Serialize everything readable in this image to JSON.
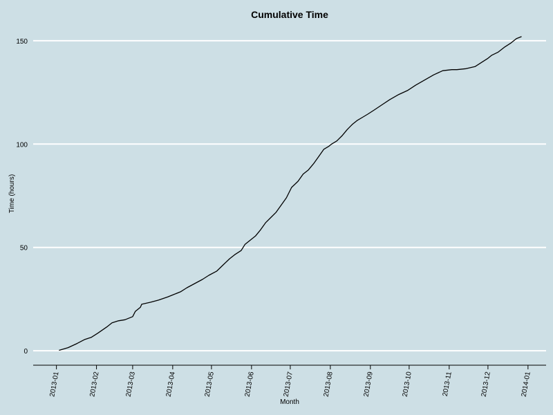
{
  "chart_data": {
    "type": "line",
    "title": "Cumulative Time",
    "xlabel": "Month",
    "ylabel": "Time (hours)",
    "x_axis_type": "date",
    "xlim": [
      "2012-12-14",
      "2014-01-15"
    ],
    "ylim": [
      -7,
      157
    ],
    "grid": "horizontal",
    "colors": {
      "background": "#cddfe5",
      "grid": "#ffffff",
      "line": "#000000"
    },
    "y_ticks": [
      0,
      50,
      100,
      150
    ],
    "x_ticks": [
      "2013-01",
      "2013-02",
      "2013-03",
      "2013-04",
      "2013-05",
      "2013-06",
      "2013-07",
      "2013-08",
      "2013-09",
      "2013-10",
      "2013-11",
      "2013-12",
      "2014-01"
    ],
    "series": [
      {
        "x": [
          "2013-01-03",
          "2013-01-10",
          "2013-01-17",
          "2013-01-23",
          "2013-01-28",
          "2013-02-02",
          "2013-02-09",
          "2013-02-13",
          "2013-02-18",
          "2013-02-23",
          "2013-03-01",
          "2013-03-03",
          "2013-03-07",
          "2013-03-08",
          "2013-03-15",
          "2013-03-21",
          "2013-03-28",
          "2013-04-01",
          "2013-04-07",
          "2013-04-12",
          "2013-04-18",
          "2013-04-24",
          "2013-04-29",
          "2013-05-05",
          "2013-05-10",
          "2013-05-15",
          "2013-05-19",
          "2013-05-24",
          "2013-05-27",
          "2013-05-31",
          "2013-06-04",
          "2013-06-08",
          "2013-06-12",
          "2013-06-16",
          "2013-06-20",
          "2013-06-24",
          "2013-06-28",
          "2013-07-02",
          "2013-07-07",
          "2013-07-11",
          "2013-07-15",
          "2013-07-19",
          "2013-07-23",
          "2013-07-27",
          "2013-07-31",
          "2013-08-02",
          "2013-08-06",
          "2013-08-10",
          "2013-08-14",
          "2013-08-18",
          "2013-08-22",
          "2013-08-26",
          "2013-08-30",
          "2013-09-04",
          "2013-09-10",
          "2013-09-16",
          "2013-09-23",
          "2013-09-30",
          "2013-10-06",
          "2013-10-13",
          "2013-10-20",
          "2013-10-27",
          "2013-11-03",
          "2013-11-07",
          "2013-11-14",
          "2013-11-21",
          "2013-11-26",
          "2013-12-01",
          "2013-12-04",
          "2013-12-09",
          "2013-12-14",
          "2013-12-19",
          "2013-12-23",
          "2013-12-27"
        ],
        "y": [
          0.2,
          1.5,
          3.5,
          5.5,
          6.5,
          8.5,
          11.5,
          13.5,
          14.5,
          15,
          16.5,
          19,
          21,
          22.5,
          23.5,
          24.5,
          26,
          27,
          28.5,
          30.5,
          32.5,
          34.5,
          36.5,
          38.5,
          41.5,
          44.5,
          46.5,
          48.5,
          51.5,
          53.5,
          55.5,
          58.5,
          62,
          64.5,
          67,
          70.5,
          74,
          79,
          82,
          85.5,
          87.5,
          90.5,
          94,
          97.5,
          99,
          100,
          101.5,
          104,
          107,
          109.5,
          111.5,
          113,
          114.5,
          116.5,
          119,
          121.5,
          124,
          126,
          128.5,
          131,
          133.5,
          135.5,
          136,
          136,
          136.5,
          137.5,
          139.5,
          141.5,
          143,
          144.5,
          147,
          149,
          151,
          152
        ]
      }
    ]
  }
}
